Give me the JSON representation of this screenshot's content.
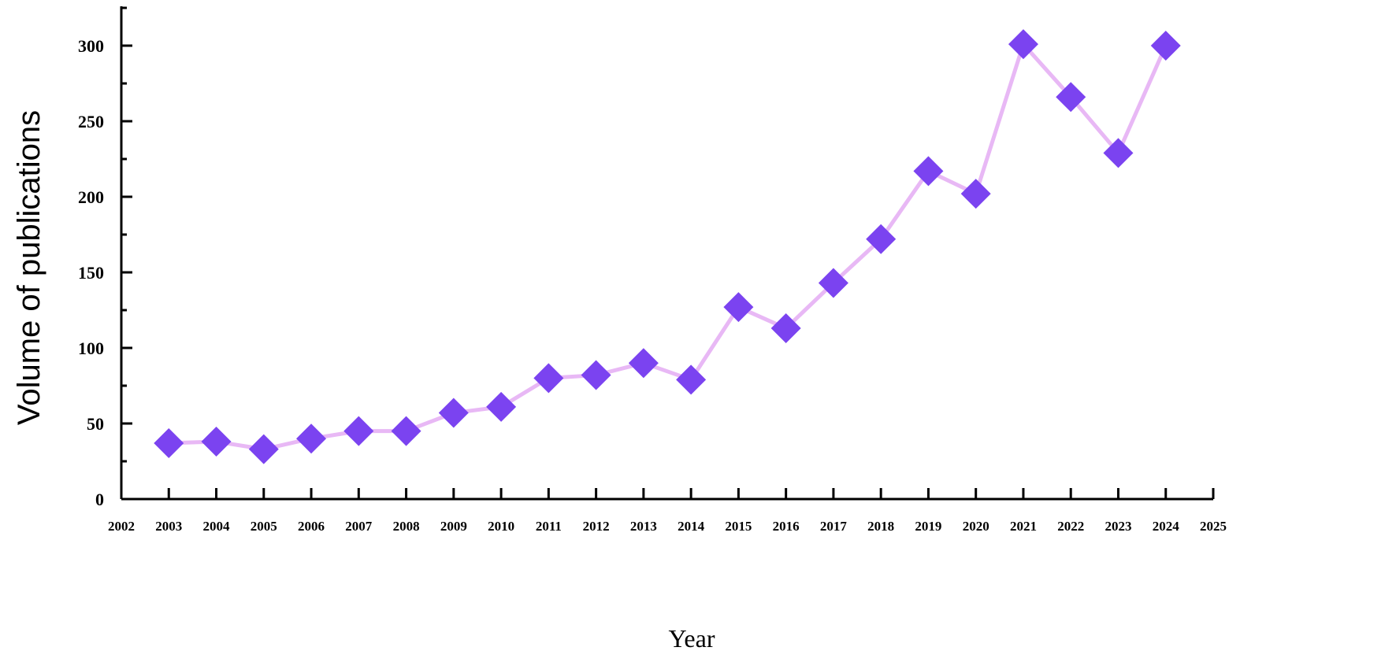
{
  "chart_data": {
    "type": "line",
    "title": "",
    "xlabel": "Year",
    "ylabel": "Volume of publications",
    "xlim": [
      2002,
      2025
    ],
    "ylim": [
      0,
      325
    ],
    "x_ticks": [
      2002,
      2003,
      2004,
      2005,
      2006,
      2007,
      2008,
      2009,
      2010,
      2011,
      2012,
      2013,
      2014,
      2015,
      2016,
      2017,
      2018,
      2019,
      2020,
      2021,
      2022,
      2023,
      2024,
      2025
    ],
    "y_ticks": [
      0,
      50,
      100,
      150,
      200,
      250,
      300
    ],
    "grid": false,
    "legend": "none",
    "series": [
      {
        "x": [
          2003,
          2004,
          2005,
          2006,
          2007,
          2008,
          2009,
          2010,
          2011,
          2012,
          2013,
          2014,
          2015,
          2016,
          2017,
          2018,
          2019,
          2020,
          2021,
          2022,
          2023,
          2024
        ],
        "values": [
          37,
          38,
          33,
          40,
          45,
          45,
          57,
          61,
          80,
          82,
          90,
          79,
          127,
          113,
          143,
          172,
          217,
          202,
          301,
          266,
          229,
          300
        ],
        "line_color": "#e8b8f5",
        "marker_color": "#7b43f0",
        "marker": "diamond"
      }
    ]
  }
}
